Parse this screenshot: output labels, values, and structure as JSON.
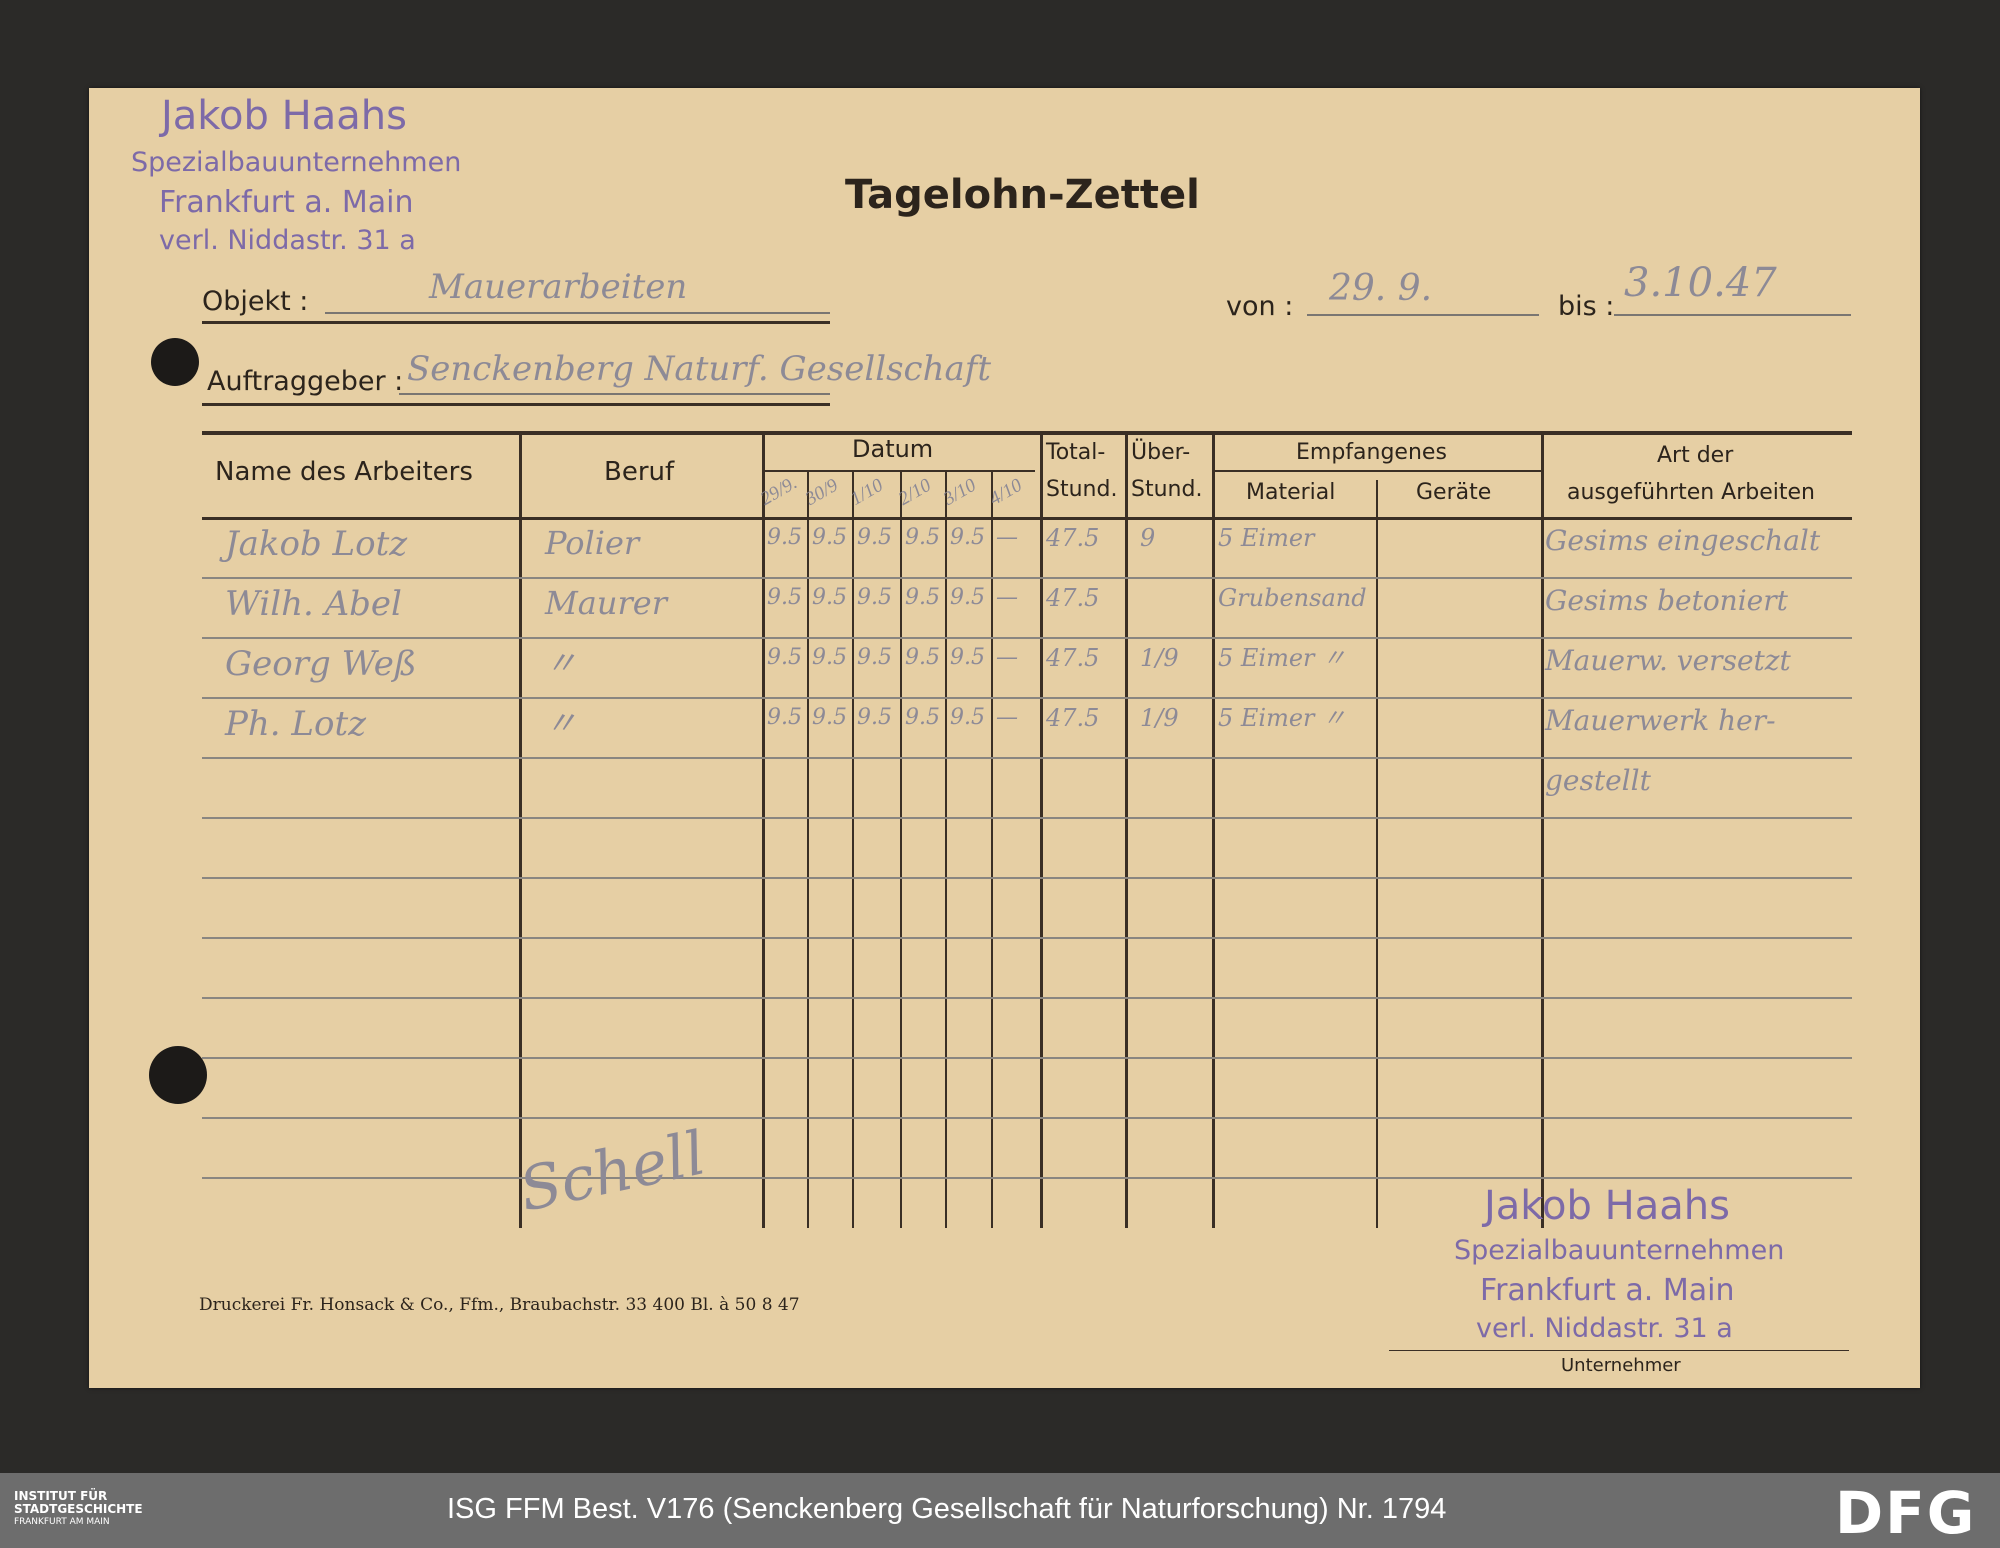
{
  "stamp_top": {
    "name": "Jakob Haahs",
    "line1": "Spezialbauunternehmen",
    "line2": "Frankfurt a. Main",
    "line3": "verl. Niddastr. 31 a"
  },
  "title": "Tagelohn-Zettel",
  "fields": {
    "objekt_label": "Objekt :",
    "objekt_value": "Mauerarbeiten",
    "von_label": "von :",
    "von_value": "29. 9.",
    "bis_label": "bis :",
    "bis_value": "3.10.47",
    "auftraggeber_label": "Auftraggeber :",
    "auftraggeber_value": "Senckenberg Naturf. Gesellschaft"
  },
  "table": {
    "headers": {
      "name": "Name des Arbeiters",
      "beruf": "Beruf",
      "datum": "Datum",
      "total1": "Total-",
      "total2": "Stund.",
      "ueber1": "Über-",
      "ueber2": "Stund.",
      "empf": "Empfangenes",
      "material": "Material",
      "geraete": "Geräte",
      "art1": "Art der",
      "art2": "ausgeführten Arbeiten"
    },
    "dates": [
      "29/9.",
      "30/9",
      "1/10",
      "2/10",
      "3/10",
      "4/10"
    ],
    "rows": [
      {
        "name": "Jakob Lotz",
        "beruf": "Polier",
        "days": [
          "9.5",
          "9.5",
          "9.5",
          "9.5",
          "9.5",
          "—"
        ],
        "total": "47.5",
        "ueber": "9",
        "material": "5 Eimer",
        "geraete": "",
        "art": "Gesims eingeschalt"
      },
      {
        "name": "Wilh. Abel",
        "beruf": "Maurer",
        "days": [
          "9.5",
          "9.5",
          "9.5",
          "9.5",
          "9.5",
          "—"
        ],
        "total": "47.5",
        "ueber": "",
        "material": "Grubensand",
        "geraete": "",
        "art": "Gesims betoniert"
      },
      {
        "name": "Georg Weß",
        "beruf": "〃",
        "days": [
          "9.5",
          "9.5",
          "9.5",
          "9.5",
          "9.5",
          "—"
        ],
        "total": "47.5",
        "ueber": "1/9",
        "material": "5 Eimer 〃",
        "geraete": "",
        "art": "Mauerw. versetzt"
      },
      {
        "name": "Ph. Lotz",
        "beruf": "〃",
        "days": [
          "9.5",
          "9.5",
          "9.5",
          "9.5",
          "9.5",
          "—"
        ],
        "total": "47.5",
        "ueber": "1/9",
        "material": "5 Eimer 〃",
        "geraete": "",
        "art": "Mauerwerk her-"
      },
      {
        "name": "",
        "beruf": "",
        "days": [
          "",
          "",
          "",
          "",
          "",
          ""
        ],
        "total": "",
        "ueber": "",
        "material": "",
        "geraete": "",
        "art": "gestellt"
      }
    ]
  },
  "signature": "Schell",
  "unternehmer_label": "Unternehmer",
  "printer_line": "Druckerei Fr. Honsack & Co., Ffm., Braubachstr. 33   400 Bl. à 50   8 47",
  "footer_bar": {
    "institute1": "INSTITUT FÜR",
    "institute2": "STADTGESCHICHTE",
    "institute3": "FRANKFURT AM MAIN",
    "caption": "ISG FFM Best. V176 (Senckenberg Gesellschaft für Naturforschung) Nr. 1794",
    "logo": "DFG"
  },
  "colors": {
    "paper": "#e6cfa4",
    "stamp": "#7d6aa8",
    "pencil": "#8d8a96",
    "bar": "#6d6d6d"
  }
}
